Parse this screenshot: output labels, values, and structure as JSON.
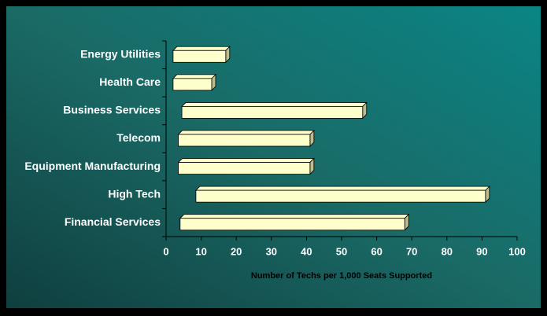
{
  "chart_data": {
    "type": "floating-bar",
    "x_label": "Number of Techs per 1,000 Seats Supported",
    "categories": [
      "Energy Utilities",
      "Health Care",
      "Business Services",
      "Telecom",
      "Equipment Manufacturing",
      "High Tech",
      "Financial Services"
    ],
    "low": [
      2,
      2,
      4.5,
      3.5,
      3.5,
      8.5,
      4
    ],
    "high": [
      17,
      13,
      56,
      41,
      41,
      91,
      68
    ],
    "color": "#ffffcc",
    "xlim": [
      0,
      100
    ],
    "xticks": [
      0,
      10,
      20,
      30,
      40,
      50,
      60,
      70,
      80,
      90,
      100
    ]
  }
}
